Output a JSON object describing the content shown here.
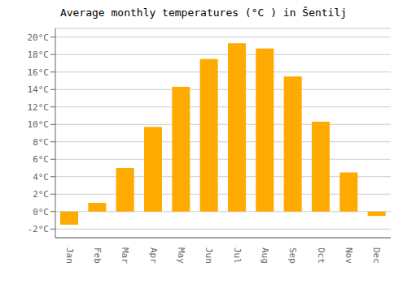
{
  "chart_data": {
    "type": "bar",
    "title": "Average monthly temperatures (°C ) in Šentilj",
    "categories": [
      "Jan",
      "Feb",
      "Mar",
      "Apr",
      "May",
      "Jun",
      "Jul",
      "Aug",
      "Sep",
      "Oct",
      "Nov",
      "Dec"
    ],
    "values": [
      -1.5,
      1.0,
      5.0,
      9.7,
      14.3,
      17.5,
      19.3,
      18.7,
      15.5,
      10.3,
      4.5,
      -0.5
    ],
    "color": "#FFAA00",
    "ylim": [
      -3,
      21
    ],
    "yticks": [
      {
        "value": -2,
        "label": "-2°C"
      },
      {
        "value": 0,
        "label": "0°C"
      },
      {
        "value": 2,
        "label": "2°C"
      },
      {
        "value": 4,
        "label": "4°C"
      },
      {
        "value": 6,
        "label": "6°C"
      },
      {
        "value": 8,
        "label": "8°C"
      },
      {
        "value": 10,
        "label": "10°C"
      },
      {
        "value": 12,
        "label": "12°C"
      },
      {
        "value": 14,
        "label": "14°C"
      },
      {
        "value": 16,
        "label": "16°C"
      },
      {
        "value": 18,
        "label": "18°C"
      },
      {
        "value": 20,
        "label": "20°C"
      }
    ],
    "grid": true
  }
}
